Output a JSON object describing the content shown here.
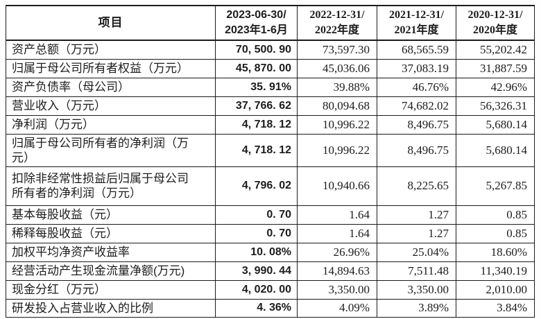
{
  "table": {
    "header": {
      "item": "项目",
      "periods": [
        "2023-06-30/\n2023年1-6月",
        "2022-12-31/\n2022年度",
        "2021-12-31/\n2021年度",
        "2020-12-31/\n2020年度"
      ]
    },
    "rows": [
      {
        "label": "资产总额（万元）",
        "values": [
          "70, 500. 90",
          "73,597.30",
          "68,565.59",
          "55,202.42"
        ]
      },
      {
        "label": "归属于母公司所有者权益（万元）",
        "values": [
          "45, 870. 00",
          "45,036.06",
          "37,083.19",
          "31,887.59"
        ]
      },
      {
        "label": "资产负债率（母公司）",
        "values": [
          "35. 91%",
          "39.88%",
          "46.76%",
          "42.96%"
        ]
      },
      {
        "label": "营业收入（万元）",
        "values": [
          "37, 766. 62",
          "80,094.68",
          "74,682.02",
          "56,326.31"
        ]
      },
      {
        "label": "净利润（万元）",
        "values": [
          "4, 718. 12",
          "10,996.22",
          "8,496.75",
          "5,680.14"
        ]
      },
      {
        "label": "归属于母公司所有者的净利润（万\n元）",
        "values": [
          "4, 718. 12",
          "10,996.22",
          "8,496.75",
          "5,680.14"
        ]
      },
      {
        "label": "扣除非经常性损益后归属于母公司\n所有者的净利润（万元）",
        "values": [
          "4, 796. 02",
          "10,940.66",
          "8,225.65",
          "5,267.85"
        ]
      },
      {
        "label": "基本每股收益（元）",
        "values": [
          "0. 70",
          "1.64",
          "1.27",
          "0.85"
        ]
      },
      {
        "label": "稀释每股收益（元）",
        "values": [
          "0. 70",
          "1.64",
          "1.27",
          "0.85"
        ]
      },
      {
        "label": "加权平均净资产收益率",
        "values": [
          "10. 08%",
          "26.96%",
          "25.04%",
          "18.60%"
        ]
      },
      {
        "label": "经营活动产生现金流量净额(万元)",
        "values": [
          "3, 990. 44",
          "14,894.63",
          "7,511.48",
          "11,340.19"
        ]
      },
      {
        "label": "现金分红（万元）",
        "values": [
          "4, 020. 00",
          "3,350.00",
          "3,350.00",
          "2,010.00"
        ]
      },
      {
        "label": "研发投入占营业收入的比例",
        "values": [
          "4. 36%",
          "4.09%",
          "3.89%",
          "3.84%"
        ]
      }
    ]
  }
}
